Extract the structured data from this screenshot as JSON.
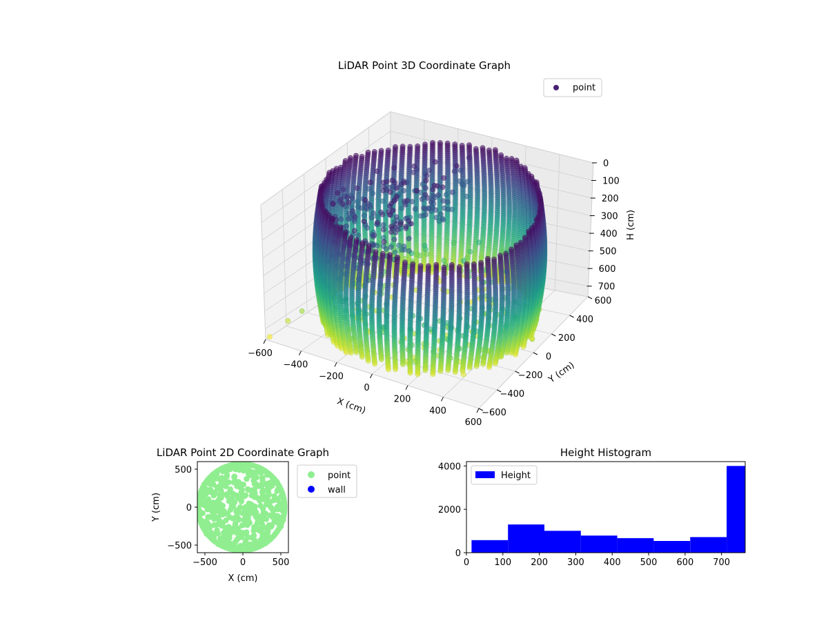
{
  "chart_data": [
    {
      "type": "scatter",
      "projection": "3d",
      "title": "LiDAR Point 3D Coordinate Graph",
      "xlabel": "X (cm)",
      "ylabel": "Y (cm)",
      "zlabel": "H (cm)",
      "xlim": [
        -600,
        600
      ],
      "ylim": [
        -600,
        600
      ],
      "zlim": [
        0,
        760
      ],
      "z_inverted": true,
      "xticks": [
        "−600",
        "−400",
        "−200",
        "0",
        "200",
        "400",
        "600"
      ],
      "yticks": [
        "−600",
        "−400",
        "−200",
        "0",
        "200",
        "400",
        "600"
      ],
      "zticks": [
        "0",
        "100",
        "200",
        "300",
        "400",
        "500",
        "600",
        "700"
      ],
      "grid": true,
      "colormap": "viridis",
      "legend": {
        "entries": [
          "point"
        ],
        "placement": "top-right"
      },
      "series": [
        {
          "name": "point",
          "color": "#482173",
          "shape": "cylindrical wall of points, radius ≈ 550 cm, heights 0–760 cm, plus scattered interior points"
        }
      ]
    },
    {
      "type": "scatter",
      "title": "LiDAR Point 2D Coordinate Graph",
      "xlabel": "X (cm)",
      "ylabel": "Y (cm)",
      "xlim": [
        -600,
        600
      ],
      "ylim": [
        -600,
        600
      ],
      "xticks": [
        "−500",
        "0",
        "500"
      ],
      "yticks": [
        "500",
        "0",
        "−500"
      ],
      "legend": {
        "entries": [
          "point",
          "wall"
        ],
        "placement": "outside-right"
      },
      "series": [
        {
          "name": "point",
          "color": "#90ee90",
          "shape": "filled disc centered near (0, 0), radius ≈ 580 cm"
        },
        {
          "name": "wall",
          "color": "#0000ff",
          "points": []
        }
      ]
    },
    {
      "type": "bar",
      "subtype": "histogram",
      "title": "Height Histogram",
      "xlabel": "",
      "ylabel": "",
      "xlim": [
        0,
        765
      ],
      "ylim": [
        0,
        4200
      ],
      "xticks": [
        "0",
        "100",
        "200",
        "300",
        "400",
        "500",
        "600",
        "700"
      ],
      "yticks": [
        "0",
        "2000",
        "4000"
      ],
      "legend": {
        "entries": [
          "Height"
        ],
        "placement": "top-left"
      },
      "color": "#0000ff",
      "bins": [
        {
          "start": 14,
          "end": 114,
          "count": 580
        },
        {
          "start": 114,
          "end": 214,
          "count": 1300
        },
        {
          "start": 214,
          "end": 314,
          "count": 1010
        },
        {
          "start": 314,
          "end": 414,
          "count": 790
        },
        {
          "start": 414,
          "end": 514,
          "count": 670
        },
        {
          "start": 514,
          "end": 614,
          "count": 540
        },
        {
          "start": 614,
          "end": 714,
          "count": 720
        },
        {
          "start": 714,
          "end": 765,
          "count": 4000
        }
      ]
    }
  ]
}
